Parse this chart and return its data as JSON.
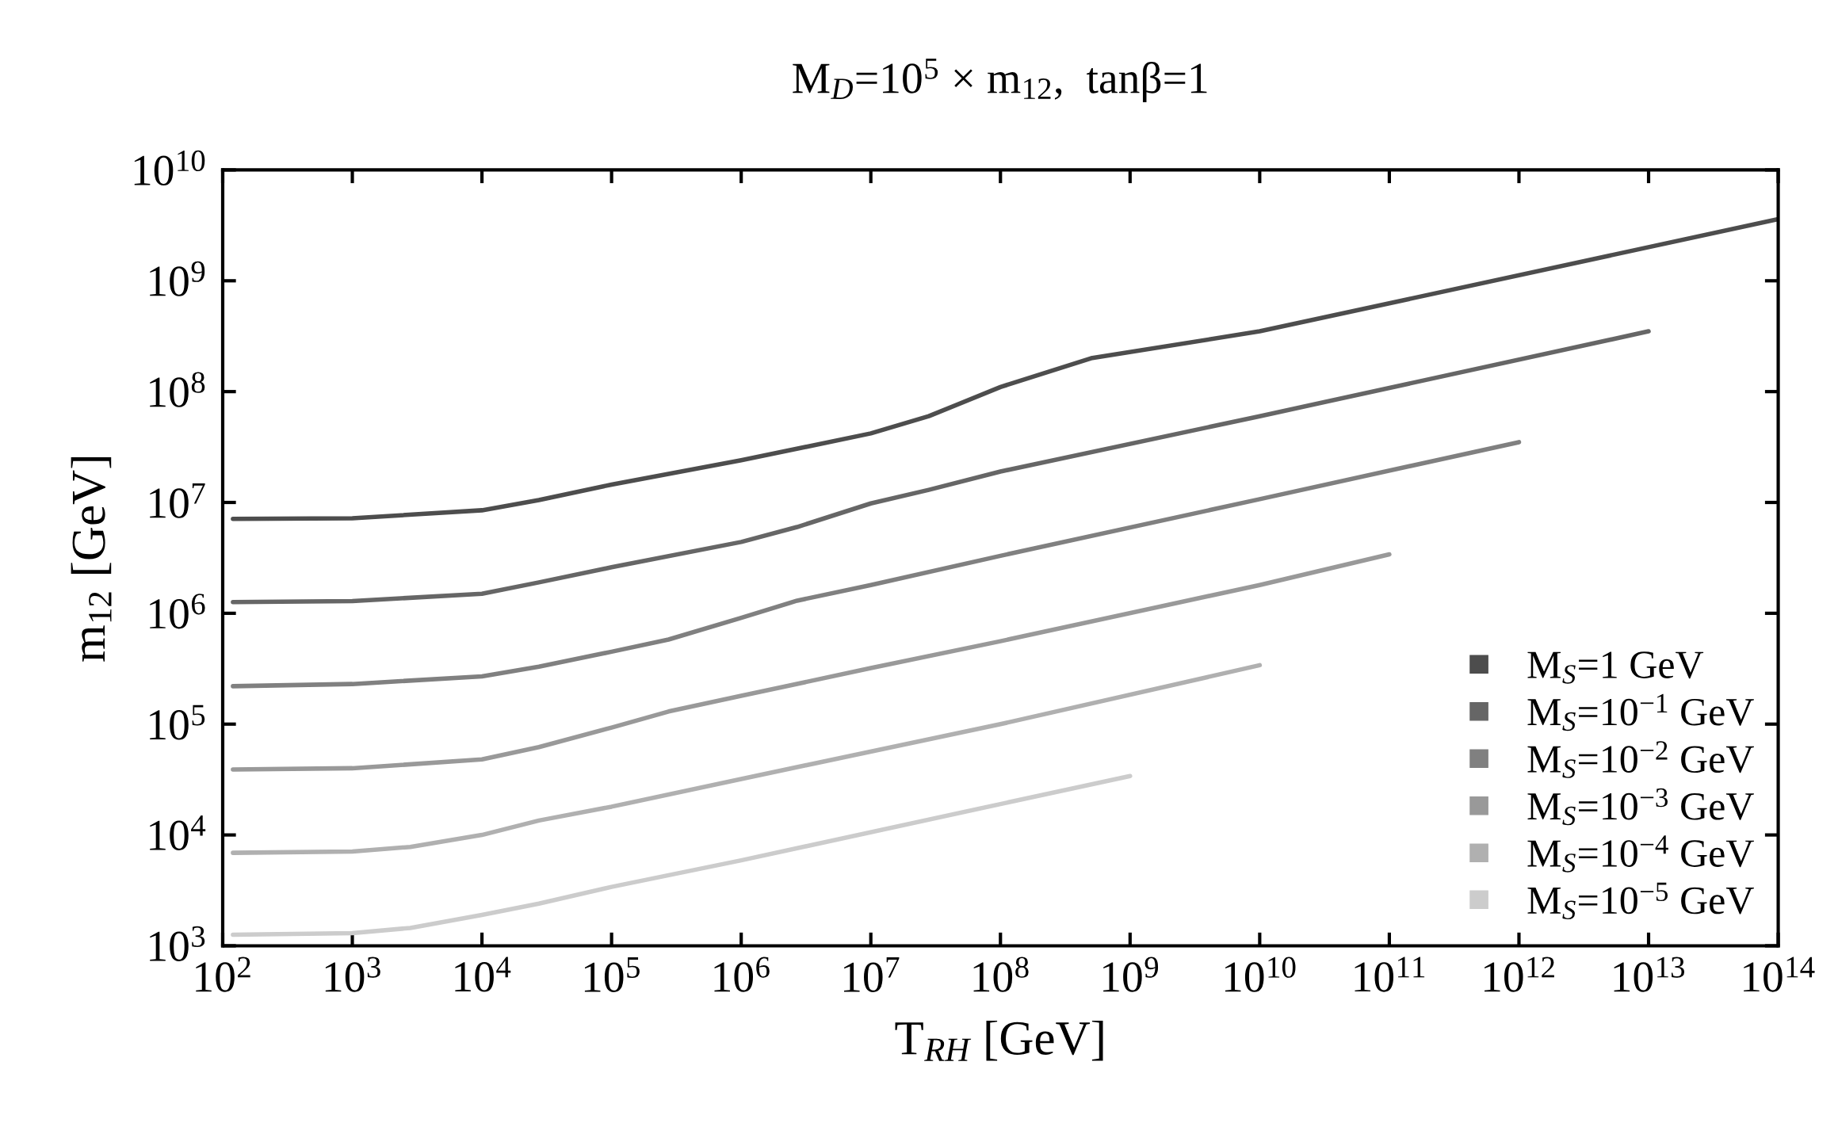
{
  "chart_data": {
    "type": "line",
    "title": "M$_{D}$=10$^{5}$ × m$_{12}$,  tanβ=1",
    "xlabel": "T$_{RH}$ [GeV]",
    "ylabel": "m$_{12}$ [GeV]",
    "log": "xy",
    "grid": false,
    "legend": "bottom right",
    "line_style": "solid",
    "xlim": [
      100,
      100000000000000.0
    ],
    "ylim": [
      1000,
      10000000000.0
    ],
    "xticks": [
      {
        "value": 100.0,
        "label": "10$^{2}$"
      },
      {
        "value": 1000.0,
        "label": "10$^{3}$"
      },
      {
        "value": 10000.0,
        "label": "10$^{4}$"
      },
      {
        "value": 100000.0,
        "label": "10$^{5}$"
      },
      {
        "value": 1000000.0,
        "label": "10$^{6}$"
      },
      {
        "value": 10000000.0,
        "label": "10$^{7}$"
      },
      {
        "value": 100000000.0,
        "label": "10$^{8}$"
      },
      {
        "value": 1000000000.0,
        "label": "10$^{9}$"
      },
      {
        "value": 10000000000.0,
        "label": "10$^{10}$"
      },
      {
        "value": 100000000000.0,
        "label": "10$^{11}$"
      },
      {
        "value": 1000000000000.0,
        "label": "10$^{12}$"
      },
      {
        "value": 10000000000000.0,
        "label": "10$^{13}$"
      },
      {
        "value": 100000000000000.0,
        "label": "10$^{14}$"
      }
    ],
    "yticks": [
      {
        "value": 1000.0,
        "label": "10$^{3}$"
      },
      {
        "value": 10000.0,
        "label": "10$^{4}$"
      },
      {
        "value": 100000.0,
        "label": "10$^{5}$"
      },
      {
        "value": 1000000.0,
        "label": "10$^{6}$"
      },
      {
        "value": 10000000.0,
        "label": "10$^{7}$"
      },
      {
        "value": 100000000.0,
        "label": "10$^{8}$"
      },
      {
        "value": 1000000000.0,
        "label": "10$^{9}$"
      },
      {
        "value": 10000000000.0,
        "label": "10$^{10}$"
      }
    ],
    "series": [
      {
        "name": "M$_{S}$=1 GeV",
        "color": "#4d4d4d",
        "x": [
          120,
          1000.0,
          10000.0,
          27500.0,
          100000.0,
          1000000.0,
          10000000.0,
          28000000.0,
          100000000.0,
          500000000.0,
          10000000000.0,
          100000000000000.0
        ],
        "values": [
          7100000.0,
          7200000.0,
          8500000.0,
          10500000.0,
          14500000.0,
          24000000.0,
          42000000.0,
          60000000.0,
          110000000.0,
          200000000.0,
          350000000.0,
          3600000000.0
        ]
      },
      {
        "name": "M$_{S}$=10$^{−1}$ GeV",
        "color": "#666666",
        "x": [
          120,
          1000.0,
          10000.0,
          27500.0,
          100000.0,
          1000000.0,
          2700000.0,
          10000000.0,
          28000000.0,
          100000000.0,
          10000000000.0,
          10000000000000.0
        ],
        "values": [
          1260000.0,
          1290000.0,
          1500000.0,
          1900000.0,
          2600000.0,
          4400000.0,
          6000000.0,
          9800000.0,
          13000000.0,
          19000000.0,
          60000000.0,
          350000000.0
        ]
      },
      {
        "name": "M$_{S}$=10$^{−2}$ GeV",
        "color": "#808080",
        "x": [
          120,
          1000.0,
          10000.0,
          27500.0,
          100000.0,
          275000.0,
          1000000.0,
          2700000.0,
          10000000.0,
          100000000.0,
          10000000000.0,
          1000000000000.0
        ],
        "values": [
          220000.0,
          230000.0,
          270000.0,
          330000.0,
          450000.0,
          580000.0,
          910000.0,
          1300000.0,
          1800000.0,
          3300000.0,
          10700000.0,
          35000000.0
        ]
      },
      {
        "name": "M$_{S}$=10$^{−3}$ GeV",
        "color": "#999999",
        "x": [
          120,
          1000.0,
          10000.0,
          27500.0,
          100000.0,
          275000.0,
          1000000.0,
          10000000.0,
          100000000.0,
          10000000000.0,
          100000000000.0
        ],
        "values": [
          39000.0,
          40000.0,
          48000.0,
          62000.0,
          93000.0,
          130000.0,
          180000.0,
          320000.0,
          560000.0,
          1800000.0,
          3400000.0
        ]
      },
      {
        "name": "M$_{S}$=10$^{−4}$ GeV",
        "color": "#b0b0b0",
        "x": [
          120,
          1000.0,
          2800.0,
          10000.0,
          27500.0,
          100000.0,
          1000000.0,
          100000000.0,
          10000000000.0
        ],
        "values": [
          6900.0,
          7100.0,
          7800.0,
          10000.0,
          13500.0,
          18000.0,
          32000.0,
          100000.0,
          340000.0
        ]
      },
      {
        "name": "M$_{S}$=10$^{−5}$ GeV",
        "color": "#cccccc",
        "x": [
          120,
          1000.0,
          2800.0,
          10000.0,
          27500.0,
          100000.0,
          1000000.0,
          100000000.0,
          1000000000.0
        ],
        "values": [
          1260.0,
          1300.0,
          1450.0,
          1900.0,
          2400.0,
          3400.0,
          5900.0,
          19000.0,
          34000.0
        ]
      }
    ]
  }
}
